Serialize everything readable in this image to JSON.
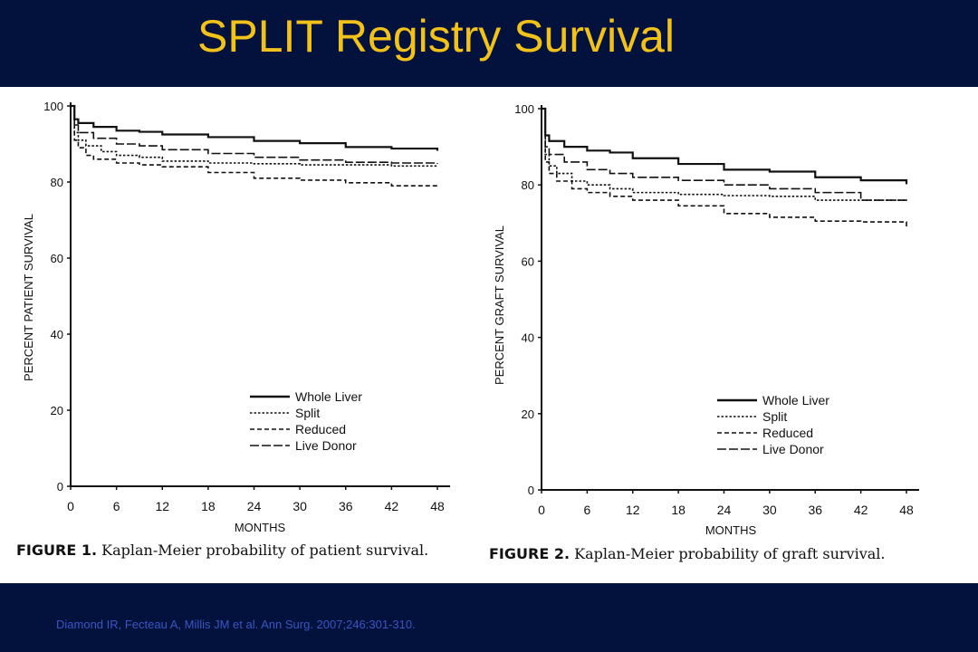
{
  "slide": {
    "title": "SPLIT Registry Survival",
    "citation": "Diamond IR, Fecteau A, Millis JM et al. Ann Surg. 2007;246:301-310."
  },
  "colors": {
    "background": "#03123d",
    "title": "#f2c21b",
    "citation": "#3a55c4"
  },
  "chart_data": [
    {
      "type": "line",
      "figure_label": "FIGURE 1.",
      "caption": "Kaplan-Meier probability of patient survival.",
      "xlabel": "MONTHS",
      "ylabel": "PERCENT PATIENT SURVIVAL",
      "xlim": [
        0,
        48
      ],
      "ylim": [
        0,
        100
      ],
      "xticks": [
        "0",
        "6",
        "12",
        "18",
        "24",
        "30",
        "36",
        "42",
        "48"
      ],
      "yticks": [
        "0",
        "20",
        "40",
        "60",
        "80",
        "100"
      ],
      "legend_position": "lower-right",
      "series": [
        {
          "name": "Whole Liver",
          "dash": "solid",
          "points": [
            [
              0,
              100
            ],
            [
              0.5,
              96.5
            ],
            [
              1,
              95.5
            ],
            [
              3,
              94.5
            ],
            [
              6,
              93.5
            ],
            [
              9,
              93.2
            ],
            [
              12,
              92.5
            ],
            [
              18,
              91.8
            ],
            [
              24,
              90.8
            ],
            [
              30,
              90.2
            ],
            [
              36,
              89.2
            ],
            [
              42,
              88.8
            ],
            [
              48,
              88.2
            ]
          ]
        },
        {
          "name": "Split",
          "dash": "dotted",
          "points": [
            [
              0,
              100
            ],
            [
              0.5,
              93
            ],
            [
              1,
              91
            ],
            [
              2,
              89.5
            ],
            [
              4,
              88
            ],
            [
              6,
              87
            ],
            [
              9,
              86.5
            ],
            [
              12,
              85.5
            ],
            [
              18,
              85
            ],
            [
              24,
              84.8
            ],
            [
              30,
              84.5
            ],
            [
              36,
              84.5
            ],
            [
              42,
              84.2
            ],
            [
              48,
              84.2
            ]
          ]
        },
        {
          "name": "Reduced",
          "dash": "dashed",
          "points": [
            [
              0,
              100
            ],
            [
              0.5,
              91
            ],
            [
              1,
              89
            ],
            [
              2,
              87
            ],
            [
              3,
              86
            ],
            [
              6,
              85
            ],
            [
              9,
              84.5
            ],
            [
              12,
              84
            ],
            [
              18,
              82.5
            ],
            [
              24,
              81
            ],
            [
              30,
              80.5
            ],
            [
              36,
              79.8
            ],
            [
              42,
              79
            ],
            [
              48,
              78.5
            ]
          ]
        },
        {
          "name": "Live Donor",
          "dash": "longdash",
          "points": [
            [
              0,
              100
            ],
            [
              0.5,
              95
            ],
            [
              1,
              93
            ],
            [
              3,
              91.5
            ],
            [
              6,
              90
            ],
            [
              9,
              89.5
            ],
            [
              12,
              88.5
            ],
            [
              18,
              87.5
            ],
            [
              24,
              86.5
            ],
            [
              30,
              85.8
            ],
            [
              36,
              85.2
            ],
            [
              42,
              85
            ],
            [
              48,
              84.8
            ]
          ]
        }
      ]
    },
    {
      "type": "line",
      "figure_label": "FIGURE 2.",
      "caption": "Kaplan-Meier probability of graft survival.",
      "xlabel": "MONTHS",
      "ylabel": "PERCENT GRAFT SURVIVAL",
      "xlim": [
        0,
        48
      ],
      "ylim": [
        0,
        100
      ],
      "xticks": [
        "0",
        "6",
        "12",
        "18",
        "24",
        "30",
        "36",
        "42",
        "48"
      ],
      "yticks": [
        "0",
        "20",
        "40",
        "60",
        "80",
        "100"
      ],
      "legend_position": "lower-right",
      "series": [
        {
          "name": "Whole Liver",
          "dash": "solid",
          "points": [
            [
              0,
              100
            ],
            [
              0.5,
              93
            ],
            [
              1,
              91.5
            ],
            [
              3,
              90
            ],
            [
              6,
              89
            ],
            [
              9,
              88.5
            ],
            [
              12,
              87
            ],
            [
              18,
              85.5
            ],
            [
              24,
              84
            ],
            [
              30,
              83.5
            ],
            [
              36,
              82
            ],
            [
              42,
              81.2
            ],
            [
              48,
              80.2
            ]
          ]
        },
        {
          "name": "Split",
          "dash": "dotted",
          "points": [
            [
              0,
              100
            ],
            [
              0.5,
              88
            ],
            [
              1,
              85
            ],
            [
              2,
              83
            ],
            [
              4,
              81
            ],
            [
              6,
              80
            ],
            [
              9,
              79
            ],
            [
              12,
              78
            ],
            [
              18,
              77.5
            ],
            [
              24,
              77.2
            ],
            [
              30,
              77
            ],
            [
              36,
              76
            ],
            [
              42,
              76
            ],
            [
              48,
              75.8
            ]
          ]
        },
        {
          "name": "Reduced",
          "dash": "dashed",
          "points": [
            [
              0,
              100
            ],
            [
              0.5,
              86
            ],
            [
              1,
              83
            ],
            [
              2,
              81
            ],
            [
              4,
              79
            ],
            [
              6,
              78
            ],
            [
              9,
              77
            ],
            [
              12,
              76
            ],
            [
              18,
              74.5
            ],
            [
              24,
              72.5
            ],
            [
              30,
              71.5
            ],
            [
              36,
              70.5
            ],
            [
              42,
              70.3
            ],
            [
              48,
              69
            ]
          ]
        },
        {
          "name": "Live Donor",
          "dash": "longdash",
          "points": [
            [
              0,
              100
            ],
            [
              0.5,
              90
            ],
            [
              1,
              88
            ],
            [
              3,
              86
            ],
            [
              6,
              84
            ],
            [
              9,
              83
            ],
            [
              12,
              82
            ],
            [
              18,
              81.2
            ],
            [
              24,
              80
            ],
            [
              30,
              79
            ],
            [
              36,
              78
            ],
            [
              42,
              76
            ],
            [
              48,
              76
            ]
          ]
        }
      ]
    }
  ]
}
